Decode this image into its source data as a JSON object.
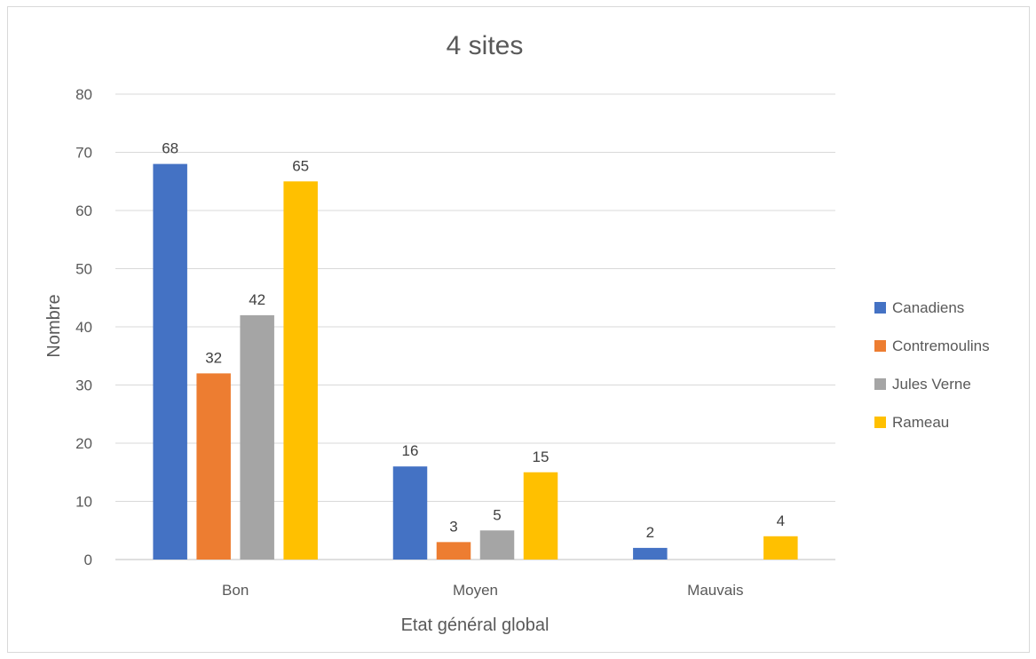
{
  "chart_data": {
    "type": "bar",
    "title": "4 sites",
    "xlabel": "Etat général global",
    "ylabel": "Nombre",
    "categories": [
      "Bon",
      "Moyen",
      "Mauvais"
    ],
    "series": [
      {
        "name": "Canadiens",
        "values": [
          68,
          16,
          2
        ],
        "color": "#4472C4"
      },
      {
        "name": "Contremoulins",
        "values": [
          32,
          3,
          null
        ],
        "color": "#ED7D31"
      },
      {
        "name": "Jules Verne",
        "values": [
          42,
          5,
          null
        ],
        "color": "#A5A5A5"
      },
      {
        "name": "Rameau",
        "values": [
          65,
          15,
          4
        ],
        "color": "#FFC000"
      }
    ],
    "ylim": [
      0,
      80
    ],
    "yticks": [
      0,
      10,
      20,
      30,
      40,
      50,
      60,
      70,
      80
    ],
    "grid": true,
    "legend_position": "right",
    "data_labels": true
  }
}
